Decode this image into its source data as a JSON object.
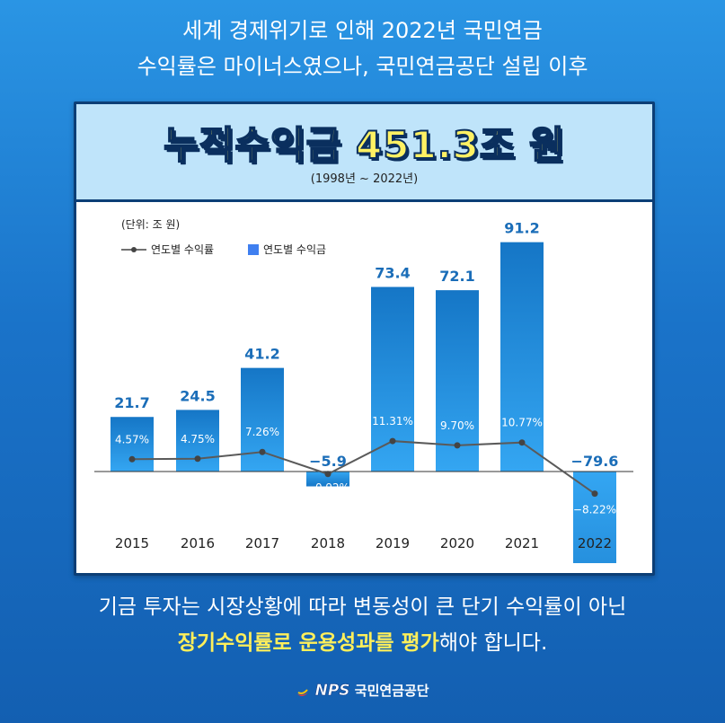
{
  "header": {
    "line1": "세계 경제위기로 인해 2022년 국민연금",
    "line2": "수익률은 마이너스였으나, 국민연금공단 설립 이후"
  },
  "banner": {
    "title": "누적수익금 451.3조 원",
    "subtitle": "(1998년 ~ 2022년)"
  },
  "chart_data": {
    "type": "bar",
    "unit_label": "(단위: 조 원)",
    "legend": {
      "line_label": "연도별 수익률",
      "bar_label": "연도별 수익금",
      "placement": "top-left"
    },
    "categories": [
      "2015",
      "2016",
      "2017",
      "2018",
      "2019",
      "2020",
      "2021",
      "2022"
    ],
    "series": [
      {
        "name": "연도별 수익금",
        "type": "bar",
        "values": [
          21.7,
          24.5,
          41.2,
          -5.9,
          73.4,
          72.1,
          91.2,
          -79.6
        ],
        "value_labels": [
          "21.7",
          "24.5",
          "41.2",
          "−5.9",
          "73.4",
          "72.1",
          "91.2",
          "−79.6"
        ]
      },
      {
        "name": "연도별 수익률",
        "type": "line",
        "values": [
          4.57,
          4.75,
          7.26,
          -0.92,
          11.31,
          9.7,
          10.77,
          -8.22
        ],
        "value_labels": [
          "4.57%",
          "4.75%",
          "7.26%",
          "−0.92%",
          "11.31%",
          "9.70%",
          "10.77%",
          "−8.22%"
        ]
      }
    ],
    "grid": false,
    "colors": {
      "bar_top": "#1576c6",
      "bar_bottom": "#34a6f2",
      "line": "#5a5a5a",
      "value_text": "#1a6db8",
      "axis": "#333333"
    }
  },
  "footer": {
    "line1": "기금 투자는 시장상황에 따라 변동성이 큰 단기 수익률이 아닌",
    "line2_highlight_1": "장기수익률로 운용성과를 평가",
    "line2_rest": "해야 합니다."
  },
  "logo": {
    "nps": "NPS",
    "name": "국민연금공단"
  }
}
